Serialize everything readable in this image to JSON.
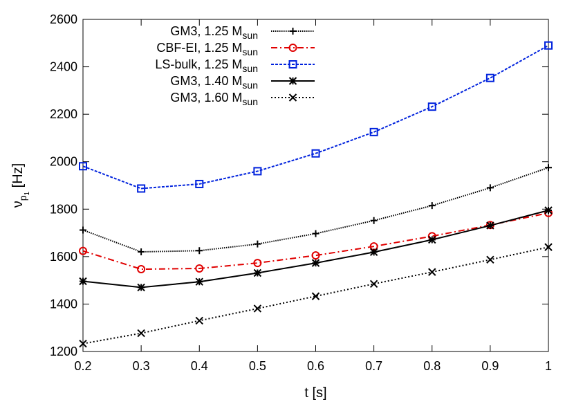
{
  "chart_data": {
    "type": "line",
    "xlabel": "t [s]",
    "ylabel": {
      "prefix": "ν",
      "sub": "p",
      "subsub": "1",
      "suffix": " [Hz]"
    },
    "xlim": [
      0.2,
      1.0
    ],
    "ylim": [
      1200,
      2600
    ],
    "xticks": [
      "0.2",
      "0.3",
      "0.4",
      "0.5",
      "0.6",
      "0.7",
      "0.8",
      "0.9",
      "1"
    ],
    "yticks": [
      "1200",
      "1400",
      "1600",
      "1800",
      "2000",
      "2200",
      "2400",
      "2600"
    ],
    "grid": false,
    "legend_position": "top-center",
    "x": [
      0.2,
      0.3,
      0.4,
      0.5,
      0.6,
      0.7,
      0.8,
      0.9,
      1.0
    ],
    "series": [
      {
        "name": "GM3, 1.25 M",
        "name_sub": "sun",
        "color": "#000000",
        "line_style": "dotted-fine",
        "marker": "plus",
        "values": [
          1712,
          1620,
          1625,
          1653,
          1697,
          1752,
          1815,
          1890,
          1975
        ]
      },
      {
        "name": "CBF-EI, 1.25 M",
        "name_sub": "sun",
        "color": "#e00000",
        "line_style": "dash-dot",
        "marker": "circle",
        "values": [
          1624,
          1547,
          1550,
          1573,
          1605,
          1643,
          1686,
          1733,
          1784
        ]
      },
      {
        "name": "LS-bulk, 1.25 M",
        "name_sub": "sun",
        "color": "#0022dd",
        "line_style": "dashed-fine",
        "marker": "square",
        "values": [
          1981,
          1887,
          1906,
          1960,
          2035,
          2125,
          2232,
          2353,
          2490
        ]
      },
      {
        "name": "GM3, 1.40 M",
        "name_sub": "sun",
        "color": "#000000",
        "line_style": "solid",
        "marker": "asterisk",
        "values": [
          1496,
          1470,
          1494,
          1531,
          1573,
          1619,
          1671,
          1731,
          1795
        ]
      },
      {
        "name": "GM3, 1.60 M",
        "name_sub": "sun",
        "color": "#000000",
        "line_style": "dotted",
        "marker": "x",
        "values": [
          1233,
          1277,
          1330,
          1381,
          1433,
          1485,
          1535,
          1587,
          1640
        ]
      }
    ]
  }
}
